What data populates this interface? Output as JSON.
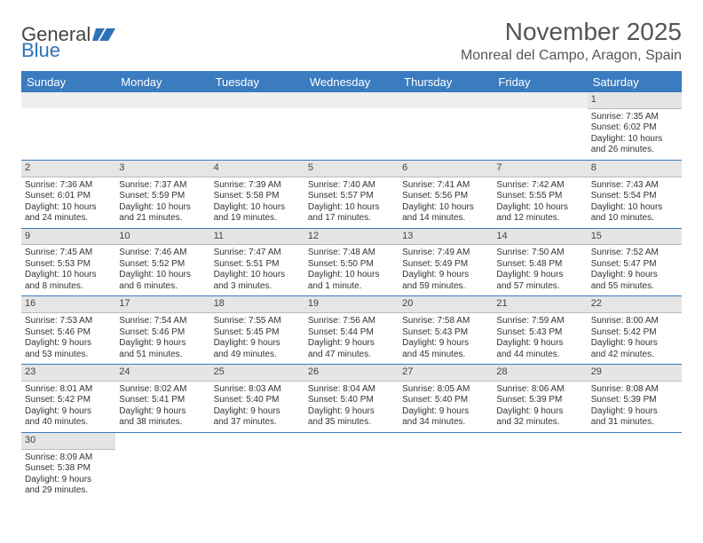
{
  "logo": {
    "part1": "General",
    "part2": "Blue"
  },
  "title": "November 2025",
  "location": "Monreal del Campo, Aragon, Spain",
  "colors": {
    "header_bg": "#3b7bbf",
    "header_text": "#ffffff",
    "daynum_bg": "#e5e5e5",
    "row_border": "#3b7bbf",
    "text": "#333333",
    "logo_accent": "#2f72b8"
  },
  "day_headers": [
    "Sunday",
    "Monday",
    "Tuesday",
    "Wednesday",
    "Thursday",
    "Friday",
    "Saturday"
  ],
  "weeks": [
    [
      {
        "blank": true
      },
      {
        "blank": true
      },
      {
        "blank": true
      },
      {
        "blank": true
      },
      {
        "blank": true
      },
      {
        "blank": true
      },
      {
        "day": "1",
        "sunrise": "Sunrise: 7:35 AM",
        "sunset": "Sunset: 6:02 PM",
        "daylight1": "Daylight: 10 hours",
        "daylight2": "and 26 minutes."
      }
    ],
    [
      {
        "day": "2",
        "sunrise": "Sunrise: 7:36 AM",
        "sunset": "Sunset: 6:01 PM",
        "daylight1": "Daylight: 10 hours",
        "daylight2": "and 24 minutes."
      },
      {
        "day": "3",
        "sunrise": "Sunrise: 7:37 AM",
        "sunset": "Sunset: 5:59 PM",
        "daylight1": "Daylight: 10 hours",
        "daylight2": "and 21 minutes."
      },
      {
        "day": "4",
        "sunrise": "Sunrise: 7:39 AM",
        "sunset": "Sunset: 5:58 PM",
        "daylight1": "Daylight: 10 hours",
        "daylight2": "and 19 minutes."
      },
      {
        "day": "5",
        "sunrise": "Sunrise: 7:40 AM",
        "sunset": "Sunset: 5:57 PM",
        "daylight1": "Daylight: 10 hours",
        "daylight2": "and 17 minutes."
      },
      {
        "day": "6",
        "sunrise": "Sunrise: 7:41 AM",
        "sunset": "Sunset: 5:56 PM",
        "daylight1": "Daylight: 10 hours",
        "daylight2": "and 14 minutes."
      },
      {
        "day": "7",
        "sunrise": "Sunrise: 7:42 AM",
        "sunset": "Sunset: 5:55 PM",
        "daylight1": "Daylight: 10 hours",
        "daylight2": "and 12 minutes."
      },
      {
        "day": "8",
        "sunrise": "Sunrise: 7:43 AM",
        "sunset": "Sunset: 5:54 PM",
        "daylight1": "Daylight: 10 hours",
        "daylight2": "and 10 minutes."
      }
    ],
    [
      {
        "day": "9",
        "sunrise": "Sunrise: 7:45 AM",
        "sunset": "Sunset: 5:53 PM",
        "daylight1": "Daylight: 10 hours",
        "daylight2": "and 8 minutes."
      },
      {
        "day": "10",
        "sunrise": "Sunrise: 7:46 AM",
        "sunset": "Sunset: 5:52 PM",
        "daylight1": "Daylight: 10 hours",
        "daylight2": "and 6 minutes."
      },
      {
        "day": "11",
        "sunrise": "Sunrise: 7:47 AM",
        "sunset": "Sunset: 5:51 PM",
        "daylight1": "Daylight: 10 hours",
        "daylight2": "and 3 minutes."
      },
      {
        "day": "12",
        "sunrise": "Sunrise: 7:48 AM",
        "sunset": "Sunset: 5:50 PM",
        "daylight1": "Daylight: 10 hours",
        "daylight2": "and 1 minute."
      },
      {
        "day": "13",
        "sunrise": "Sunrise: 7:49 AM",
        "sunset": "Sunset: 5:49 PM",
        "daylight1": "Daylight: 9 hours",
        "daylight2": "and 59 minutes."
      },
      {
        "day": "14",
        "sunrise": "Sunrise: 7:50 AM",
        "sunset": "Sunset: 5:48 PM",
        "daylight1": "Daylight: 9 hours",
        "daylight2": "and 57 minutes."
      },
      {
        "day": "15",
        "sunrise": "Sunrise: 7:52 AM",
        "sunset": "Sunset: 5:47 PM",
        "daylight1": "Daylight: 9 hours",
        "daylight2": "and 55 minutes."
      }
    ],
    [
      {
        "day": "16",
        "sunrise": "Sunrise: 7:53 AM",
        "sunset": "Sunset: 5:46 PM",
        "daylight1": "Daylight: 9 hours",
        "daylight2": "and 53 minutes."
      },
      {
        "day": "17",
        "sunrise": "Sunrise: 7:54 AM",
        "sunset": "Sunset: 5:46 PM",
        "daylight1": "Daylight: 9 hours",
        "daylight2": "and 51 minutes."
      },
      {
        "day": "18",
        "sunrise": "Sunrise: 7:55 AM",
        "sunset": "Sunset: 5:45 PM",
        "daylight1": "Daylight: 9 hours",
        "daylight2": "and 49 minutes."
      },
      {
        "day": "19",
        "sunrise": "Sunrise: 7:56 AM",
        "sunset": "Sunset: 5:44 PM",
        "daylight1": "Daylight: 9 hours",
        "daylight2": "and 47 minutes."
      },
      {
        "day": "20",
        "sunrise": "Sunrise: 7:58 AM",
        "sunset": "Sunset: 5:43 PM",
        "daylight1": "Daylight: 9 hours",
        "daylight2": "and 45 minutes."
      },
      {
        "day": "21",
        "sunrise": "Sunrise: 7:59 AM",
        "sunset": "Sunset: 5:43 PM",
        "daylight1": "Daylight: 9 hours",
        "daylight2": "and 44 minutes."
      },
      {
        "day": "22",
        "sunrise": "Sunrise: 8:00 AM",
        "sunset": "Sunset: 5:42 PM",
        "daylight1": "Daylight: 9 hours",
        "daylight2": "and 42 minutes."
      }
    ],
    [
      {
        "day": "23",
        "sunrise": "Sunrise: 8:01 AM",
        "sunset": "Sunset: 5:42 PM",
        "daylight1": "Daylight: 9 hours",
        "daylight2": "and 40 minutes."
      },
      {
        "day": "24",
        "sunrise": "Sunrise: 8:02 AM",
        "sunset": "Sunset: 5:41 PM",
        "daylight1": "Daylight: 9 hours",
        "daylight2": "and 38 minutes."
      },
      {
        "day": "25",
        "sunrise": "Sunrise: 8:03 AM",
        "sunset": "Sunset: 5:40 PM",
        "daylight1": "Daylight: 9 hours",
        "daylight2": "and 37 minutes."
      },
      {
        "day": "26",
        "sunrise": "Sunrise: 8:04 AM",
        "sunset": "Sunset: 5:40 PM",
        "daylight1": "Daylight: 9 hours",
        "daylight2": "and 35 minutes."
      },
      {
        "day": "27",
        "sunrise": "Sunrise: 8:05 AM",
        "sunset": "Sunset: 5:40 PM",
        "daylight1": "Daylight: 9 hours",
        "daylight2": "and 34 minutes."
      },
      {
        "day": "28",
        "sunrise": "Sunrise: 8:06 AM",
        "sunset": "Sunset: 5:39 PM",
        "daylight1": "Daylight: 9 hours",
        "daylight2": "and 32 minutes."
      },
      {
        "day": "29",
        "sunrise": "Sunrise: 8:08 AM",
        "sunset": "Sunset: 5:39 PM",
        "daylight1": "Daylight: 9 hours",
        "daylight2": "and 31 minutes."
      }
    ],
    [
      {
        "day": "30",
        "sunrise": "Sunrise: 8:09 AM",
        "sunset": "Sunset: 5:38 PM",
        "daylight1": "Daylight: 9 hours",
        "daylight2": "and 29 minutes."
      },
      {
        "blank": true
      },
      {
        "blank": true
      },
      {
        "blank": true
      },
      {
        "blank": true
      },
      {
        "blank": true
      },
      {
        "blank": true
      }
    ]
  ]
}
